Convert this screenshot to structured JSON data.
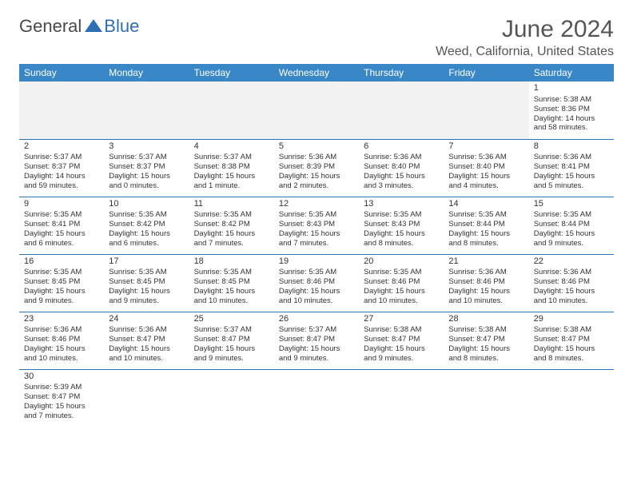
{
  "logo": {
    "general": "General",
    "blue": "Blue"
  },
  "header": {
    "month_title": "June 2024",
    "location": "Weed, California, United States"
  },
  "colors": {
    "header_bg": "#3a87c8",
    "header_text": "#ffffff",
    "border": "#2d6fb5",
    "blank_bg": "#f2f2f2",
    "text": "#333333",
    "logo_blue": "#2d6fb5",
    "logo_gray": "#4a4a4a"
  },
  "weekdays": [
    "Sunday",
    "Monday",
    "Tuesday",
    "Wednesday",
    "Thursday",
    "Friday",
    "Saturday"
  ],
  "weeks": [
    [
      null,
      null,
      null,
      null,
      null,
      null,
      {
        "day": "1",
        "sunrise": "Sunrise: 5:38 AM",
        "sunset": "Sunset: 8:36 PM",
        "daylight": "Daylight: 14 hours and 58 minutes."
      }
    ],
    [
      {
        "day": "2",
        "sunrise": "Sunrise: 5:37 AM",
        "sunset": "Sunset: 8:37 PM",
        "daylight": "Daylight: 14 hours and 59 minutes."
      },
      {
        "day": "3",
        "sunrise": "Sunrise: 5:37 AM",
        "sunset": "Sunset: 8:37 PM",
        "daylight": "Daylight: 15 hours and 0 minutes."
      },
      {
        "day": "4",
        "sunrise": "Sunrise: 5:37 AM",
        "sunset": "Sunset: 8:38 PM",
        "daylight": "Daylight: 15 hours and 1 minute."
      },
      {
        "day": "5",
        "sunrise": "Sunrise: 5:36 AM",
        "sunset": "Sunset: 8:39 PM",
        "daylight": "Daylight: 15 hours and 2 minutes."
      },
      {
        "day": "6",
        "sunrise": "Sunrise: 5:36 AM",
        "sunset": "Sunset: 8:40 PM",
        "daylight": "Daylight: 15 hours and 3 minutes."
      },
      {
        "day": "7",
        "sunrise": "Sunrise: 5:36 AM",
        "sunset": "Sunset: 8:40 PM",
        "daylight": "Daylight: 15 hours and 4 minutes."
      },
      {
        "day": "8",
        "sunrise": "Sunrise: 5:36 AM",
        "sunset": "Sunset: 8:41 PM",
        "daylight": "Daylight: 15 hours and 5 minutes."
      }
    ],
    [
      {
        "day": "9",
        "sunrise": "Sunrise: 5:35 AM",
        "sunset": "Sunset: 8:41 PM",
        "daylight": "Daylight: 15 hours and 6 minutes."
      },
      {
        "day": "10",
        "sunrise": "Sunrise: 5:35 AM",
        "sunset": "Sunset: 8:42 PM",
        "daylight": "Daylight: 15 hours and 6 minutes."
      },
      {
        "day": "11",
        "sunrise": "Sunrise: 5:35 AM",
        "sunset": "Sunset: 8:42 PM",
        "daylight": "Daylight: 15 hours and 7 minutes."
      },
      {
        "day": "12",
        "sunrise": "Sunrise: 5:35 AM",
        "sunset": "Sunset: 8:43 PM",
        "daylight": "Daylight: 15 hours and 7 minutes."
      },
      {
        "day": "13",
        "sunrise": "Sunrise: 5:35 AM",
        "sunset": "Sunset: 8:43 PM",
        "daylight": "Daylight: 15 hours and 8 minutes."
      },
      {
        "day": "14",
        "sunrise": "Sunrise: 5:35 AM",
        "sunset": "Sunset: 8:44 PM",
        "daylight": "Daylight: 15 hours and 8 minutes."
      },
      {
        "day": "15",
        "sunrise": "Sunrise: 5:35 AM",
        "sunset": "Sunset: 8:44 PM",
        "daylight": "Daylight: 15 hours and 9 minutes."
      }
    ],
    [
      {
        "day": "16",
        "sunrise": "Sunrise: 5:35 AM",
        "sunset": "Sunset: 8:45 PM",
        "daylight": "Daylight: 15 hours and 9 minutes."
      },
      {
        "day": "17",
        "sunrise": "Sunrise: 5:35 AM",
        "sunset": "Sunset: 8:45 PM",
        "daylight": "Daylight: 15 hours and 9 minutes."
      },
      {
        "day": "18",
        "sunrise": "Sunrise: 5:35 AM",
        "sunset": "Sunset: 8:45 PM",
        "daylight": "Daylight: 15 hours and 10 minutes."
      },
      {
        "day": "19",
        "sunrise": "Sunrise: 5:35 AM",
        "sunset": "Sunset: 8:46 PM",
        "daylight": "Daylight: 15 hours and 10 minutes."
      },
      {
        "day": "20",
        "sunrise": "Sunrise: 5:35 AM",
        "sunset": "Sunset: 8:46 PM",
        "daylight": "Daylight: 15 hours and 10 minutes."
      },
      {
        "day": "21",
        "sunrise": "Sunrise: 5:36 AM",
        "sunset": "Sunset: 8:46 PM",
        "daylight": "Daylight: 15 hours and 10 minutes."
      },
      {
        "day": "22",
        "sunrise": "Sunrise: 5:36 AM",
        "sunset": "Sunset: 8:46 PM",
        "daylight": "Daylight: 15 hours and 10 minutes."
      }
    ],
    [
      {
        "day": "23",
        "sunrise": "Sunrise: 5:36 AM",
        "sunset": "Sunset: 8:46 PM",
        "daylight": "Daylight: 15 hours and 10 minutes."
      },
      {
        "day": "24",
        "sunrise": "Sunrise: 5:36 AM",
        "sunset": "Sunset: 8:47 PM",
        "daylight": "Daylight: 15 hours and 10 minutes."
      },
      {
        "day": "25",
        "sunrise": "Sunrise: 5:37 AM",
        "sunset": "Sunset: 8:47 PM",
        "daylight": "Daylight: 15 hours and 9 minutes."
      },
      {
        "day": "26",
        "sunrise": "Sunrise: 5:37 AM",
        "sunset": "Sunset: 8:47 PM",
        "daylight": "Daylight: 15 hours and 9 minutes."
      },
      {
        "day": "27",
        "sunrise": "Sunrise: 5:38 AM",
        "sunset": "Sunset: 8:47 PM",
        "daylight": "Daylight: 15 hours and 9 minutes."
      },
      {
        "day": "28",
        "sunrise": "Sunrise: 5:38 AM",
        "sunset": "Sunset: 8:47 PM",
        "daylight": "Daylight: 15 hours and 8 minutes."
      },
      {
        "day": "29",
        "sunrise": "Sunrise: 5:38 AM",
        "sunset": "Sunset: 8:47 PM",
        "daylight": "Daylight: 15 hours and 8 minutes."
      }
    ],
    [
      {
        "day": "30",
        "sunrise": "Sunrise: 5:39 AM",
        "sunset": "Sunset: 8:47 PM",
        "daylight": "Daylight: 15 hours and 7 minutes."
      },
      null,
      null,
      null,
      null,
      null,
      null
    ]
  ]
}
